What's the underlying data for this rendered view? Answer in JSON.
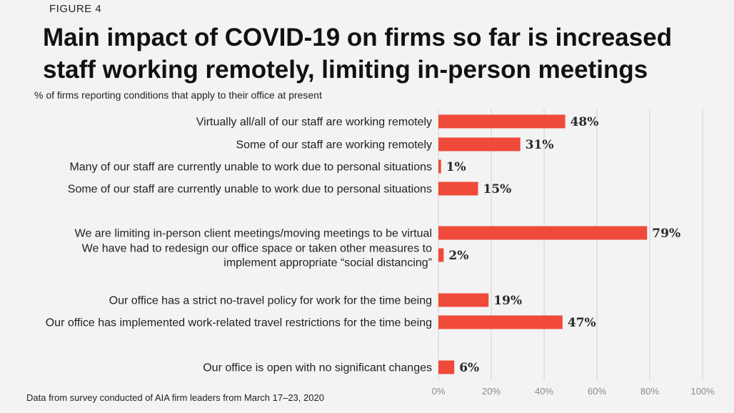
{
  "figure_label": "FIGURE 4",
  "chart_data": {
    "type": "bar",
    "orientation": "horizontal",
    "title": "Main impact of COVID-19 on firms so far is increased staff working remotely, limiting in-person meetings",
    "subtitle": "% of firms reporting conditions that apply to their office at present",
    "source": "Data from survey conducted of AIA firm leaders from March 17–23, 2020",
    "xlim": [
      0,
      100
    ],
    "ticks": [
      "0%",
      "20%",
      "40%",
      "60%",
      "80%",
      "100%"
    ],
    "tick_values": [
      0,
      20,
      40,
      60,
      80,
      100
    ],
    "grid": true,
    "bar_color": "#f04a3a",
    "categories": [
      [
        "Virtually all/all of our staff are working remotely"
      ],
      [
        "Some of our staff are working remotely"
      ],
      [
        "Many of our staff are currently unable to work due to personal situations"
      ],
      [
        "Some of our staff are currently unable to work due to personal situations"
      ],
      [
        "We are limiting in-person client meetings/moving meetings to be virtual"
      ],
      [
        "We have had to redesign our office space or taken other measures to",
        "implement appropriate “social distancing”"
      ],
      [
        "Our office has a strict no-travel policy for work for the time being"
      ],
      [
        "Our office has implemented work-related travel restrictions for the time being"
      ],
      [
        "Our office is open with no significant changes"
      ]
    ],
    "values": [
      48,
      31,
      1,
      15,
      79,
      2,
      19,
      47,
      6
    ],
    "value_labels": [
      "48%",
      "31%",
      "1%",
      "15%",
      "79%",
      "2%",
      "19%",
      "47%",
      "6%"
    ]
  }
}
